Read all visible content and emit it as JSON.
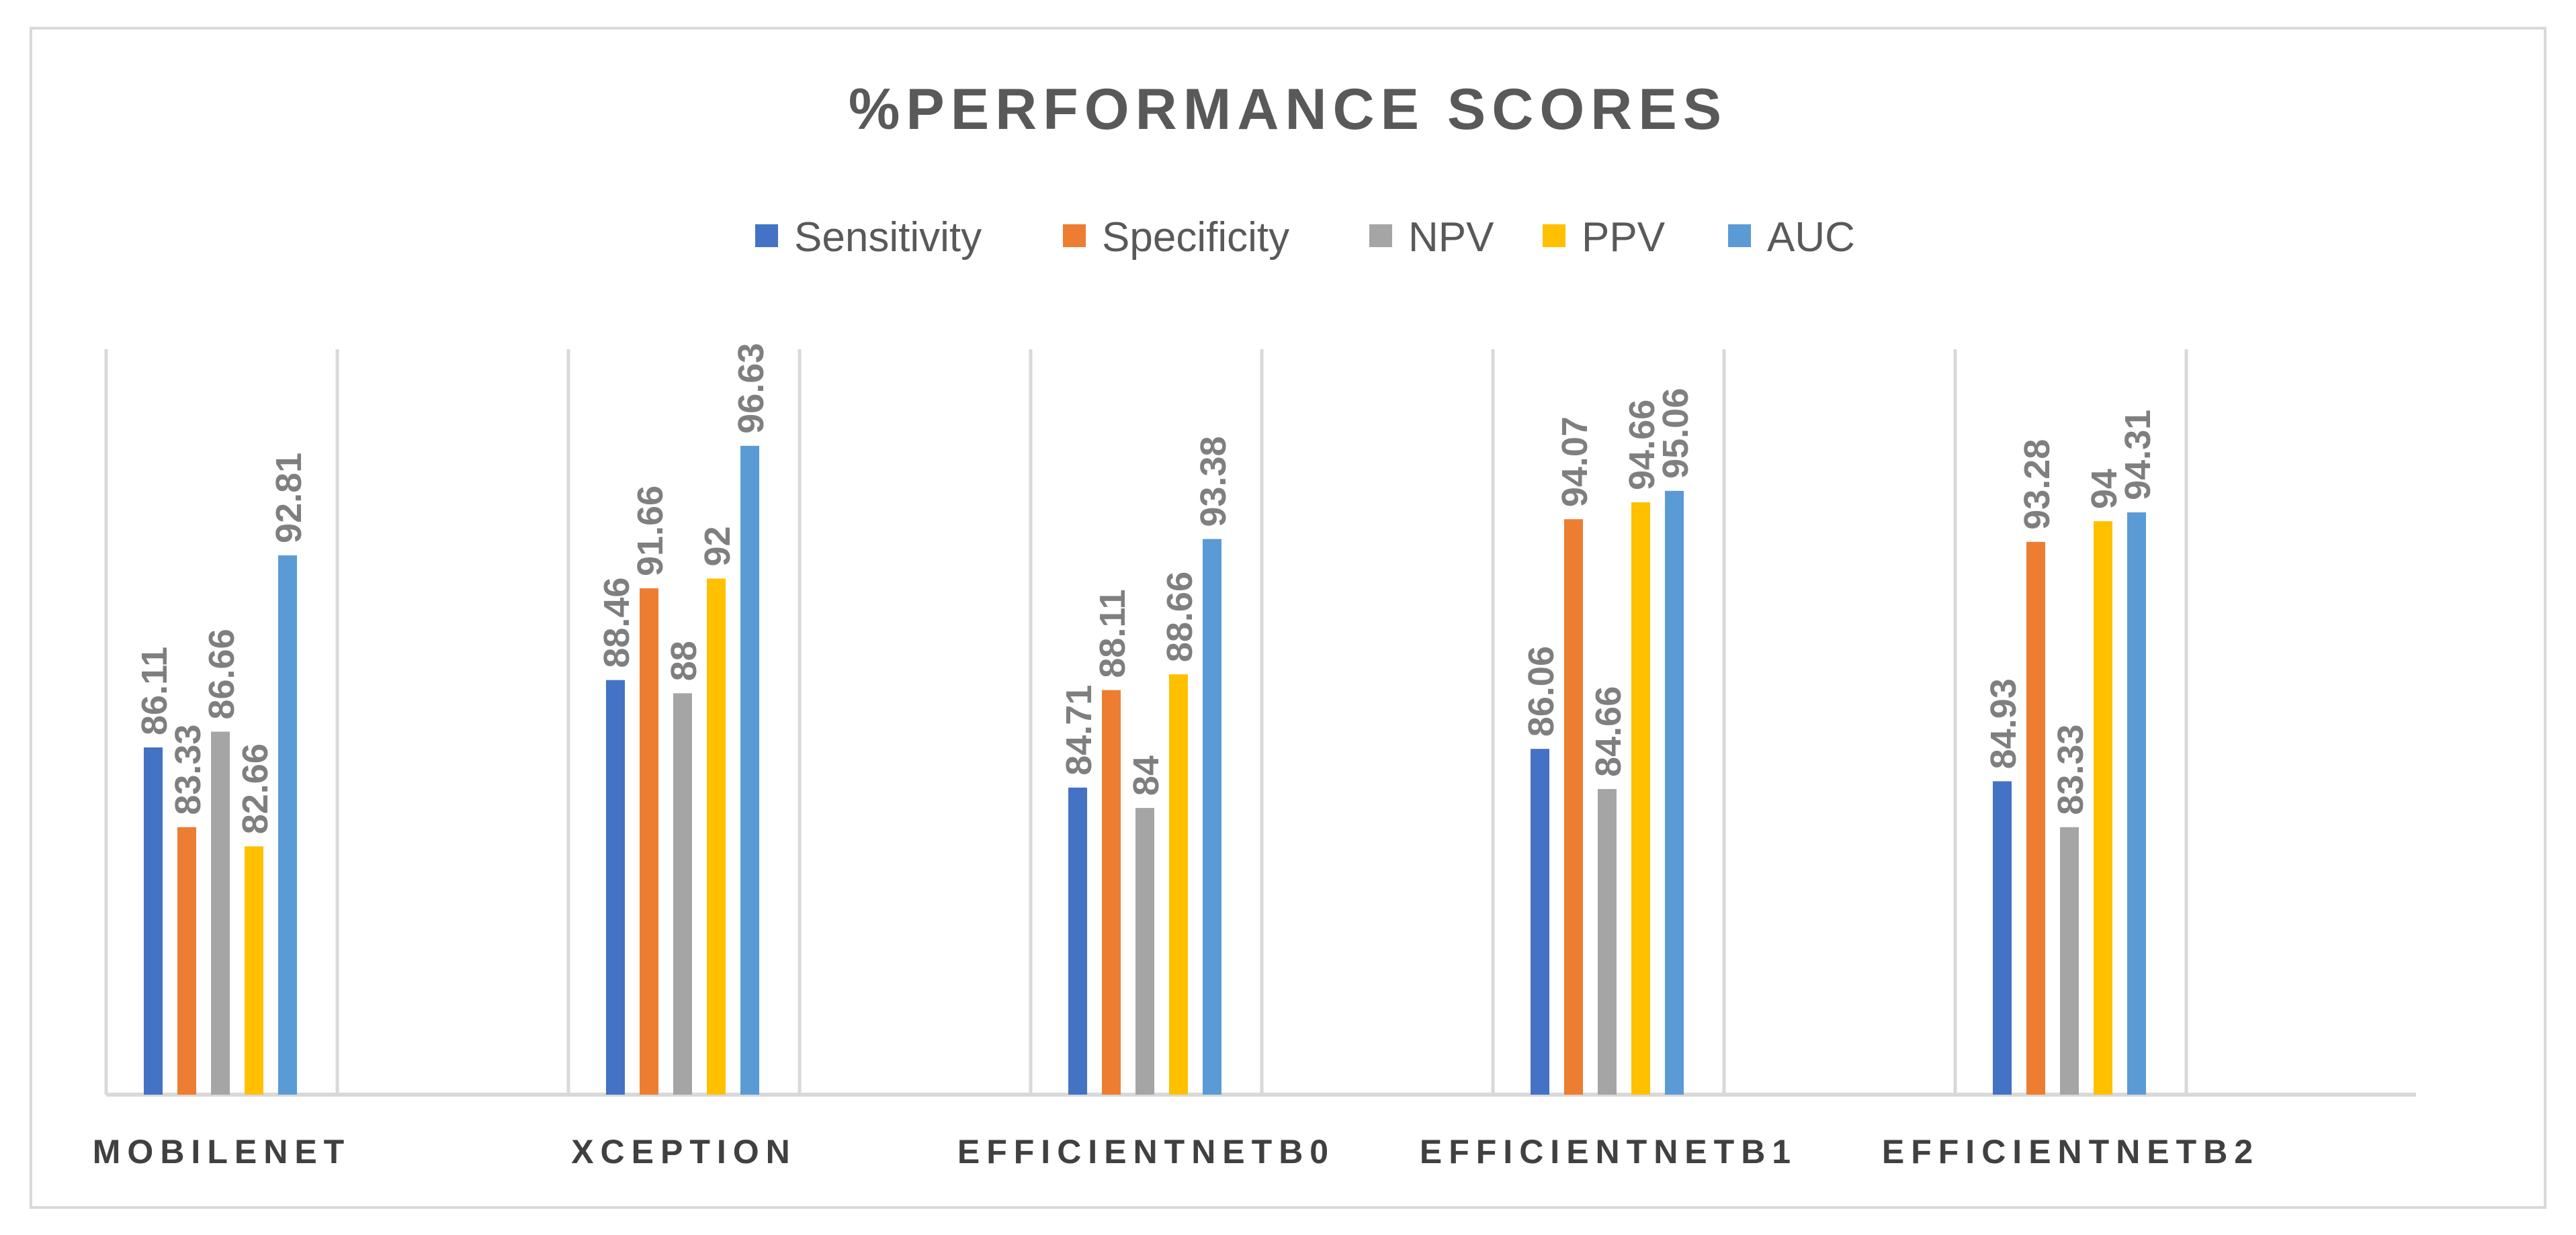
{
  "chart_data": {
    "type": "bar",
    "title": "%PERFORMANCE SCORES",
    "xlabel": "",
    "ylabel": "",
    "categories": [
      "MOBILENET",
      "XCEPTION",
      "EFFICIENTNETB0",
      "EFFICIENTNETB1",
      "EFFICIENTNETB2"
    ],
    "series": [
      {
        "name": "Sensitivity",
        "color": "#4472C4",
        "values": [
          86.11,
          88.46,
          84.71,
          86.06,
          84.93
        ]
      },
      {
        "name": "Specificity",
        "color": "#ED7D31",
        "values": [
          83.33,
          91.66,
          88.11,
          94.07,
          93.28
        ]
      },
      {
        "name": "NPV",
        "color": "#A5A5A5",
        "values": [
          86.66,
          88,
          84,
          84.66,
          83.33
        ]
      },
      {
        "name": "PPV",
        "color": "#FFC000",
        "values": [
          82.66,
          92,
          88.66,
          94.66,
          94
        ]
      },
      {
        "name": "AUC",
        "color": "#5B9BD5",
        "values": [
          92.81,
          96.63,
          93.38,
          95.06,
          94.31
        ]
      }
    ],
    "data_labels": [
      [
        "86.11",
        "88.46",
        "84.71",
        "86.06",
        "84.93"
      ],
      [
        "83.33",
        "91.66",
        "88.11",
        "94.07",
        "93.28"
      ],
      [
        "86.66",
        "88",
        "84",
        "84.66",
        "83.33"
      ],
      [
        "82.66",
        "92",
        "88.66",
        "94.66",
        "94"
      ],
      [
        "92.81",
        "96.63",
        "93.38",
        "95.06",
        "94.31"
      ]
    ],
    "ylim": [
      74,
      100
    ],
    "grid": "vertical",
    "legend_position": "top"
  }
}
